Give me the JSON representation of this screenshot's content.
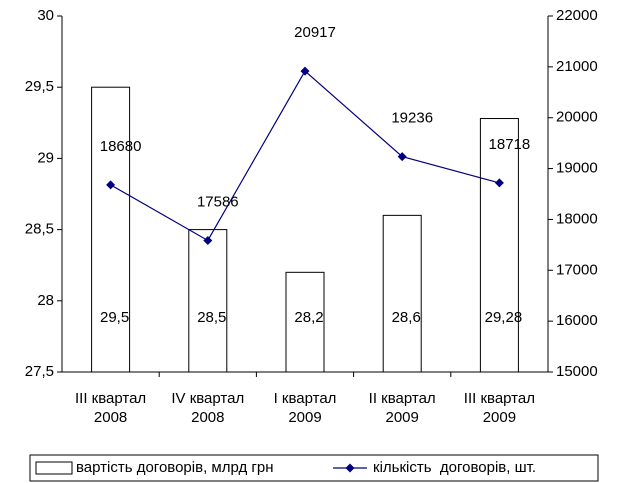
{
  "chart_data": {
    "type": "bar_line",
    "categories": [
      "III квартал\n2008",
      "IV квартал\n2008",
      "I квартал\n2009",
      "II квартал\n2009",
      "III квартал\n2009"
    ],
    "series": [
      {
        "name": "вартість договорів, млрд грн",
        "type": "bar",
        "color": "#ffffff",
        "values": [
          29.5,
          28.5,
          28.2,
          28.6,
          29.28
        ],
        "value_labels": [
          "29,5",
          "28,5",
          "28,2",
          "28,6",
          "29,28"
        ]
      },
      {
        "name": "кількість  договорів, шт.",
        "type": "line",
        "axis": "y2",
        "color": "#000080",
        "values": [
          18680,
          17586,
          20917,
          19236,
          18718
        ]
      }
    ],
    "ylim": [
      27.5,
      30
    ],
    "yticks": [
      {
        "value": 27.5,
        "label": "27,5"
      },
      28,
      {
        "value": 28.5,
        "label": "28,5"
      },
      29,
      {
        "value": 29.5,
        "label": "29,5"
      },
      30
    ],
    "y2lim": [
      15000,
      22000
    ],
    "y2ticks": [
      15000,
      16000,
      17000,
      18000,
      19000,
      20000,
      21000,
      22000
    ],
    "legend": "bottom",
    "grid": false
  }
}
